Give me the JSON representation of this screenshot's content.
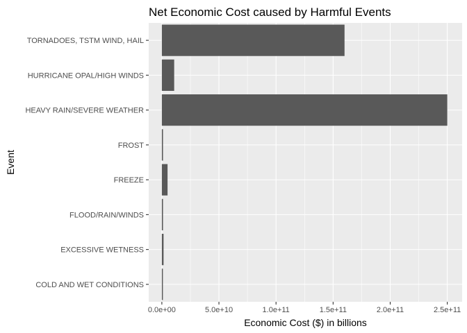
{
  "chart_data": {
    "type": "bar",
    "orientation": "horizontal",
    "title": "Net Economic Cost caused by Harmful Events",
    "xlabel": "Economic Cost ($) in billions",
    "ylabel": "Event",
    "categories": [
      "TORNADOES, TSTM WIND, HAIL",
      "HURRICANE OPAL/HIGH WINDS",
      "HEAVY RAIN/SEVERE WEATHER",
      "FROST",
      "FREEZE",
      "FLOOD/RAIN/WINDS",
      "EXCESSIVE WETNESS",
      "COLD AND WET CONDITIONS"
    ],
    "values": [
      160000000000,
      10800000000,
      250000000000,
      1000000000,
      5000000000,
      1000000000,
      1500000000,
      900000000
    ],
    "xlim": [
      -11500000000,
      263000000000
    ],
    "xticks": [
      0,
      50000000000,
      100000000000,
      150000000000,
      200000000000,
      250000000000
    ],
    "xtick_labels": [
      "0.0e+00",
      "5.0e+10",
      "1.0e+11",
      "1.5e+11",
      "2.0e+11",
      "2.5e+11"
    ],
    "grid": true,
    "colors": {
      "bar": "#595959",
      "panel": "#ebebeb",
      "grid": "#ffffff"
    }
  }
}
